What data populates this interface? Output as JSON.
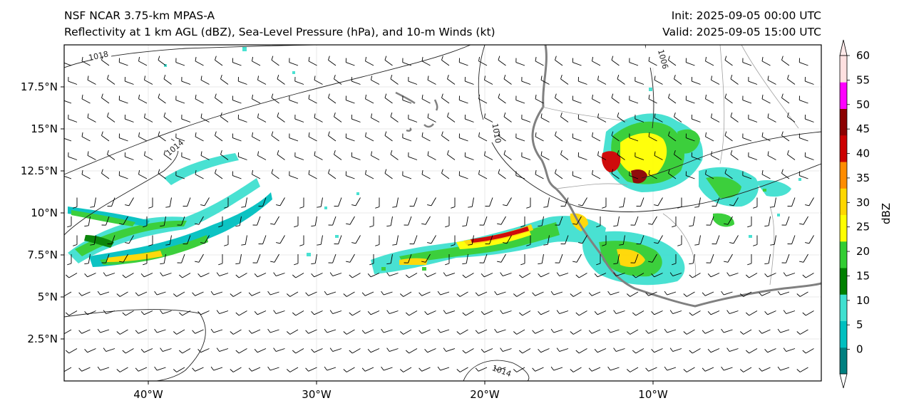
{
  "titles": {
    "left_line1": "NSF NCAR 3.75-km MPAS-A",
    "left_line2": "Reflectivity at 1 km AGL (dBZ), Sea-Level Pressure (hPa), and 10-m Winds (kt)",
    "right_line1": "Init: 2025-09-05 00:00 UTC",
    "right_line2": "Valid: 2025-09-05 15:00 UTC"
  },
  "map": {
    "extent": {
      "lon_min": -45,
      "lon_max": 0,
      "lat_min": 0,
      "lat_max": 20
    },
    "x_ticks": [
      {
        "lon": -40,
        "label": "40°W"
      },
      {
        "lon": -30,
        "label": "30°W"
      },
      {
        "lon": -20,
        "label": "20°W"
      },
      {
        "lon": -10,
        "label": "10°W"
      }
    ],
    "y_ticks": [
      {
        "lat": 2.5,
        "label": "2.5°N"
      },
      {
        "lat": 5,
        "label": "5°N"
      },
      {
        "lat": 7.5,
        "label": "7.5°N"
      },
      {
        "lat": 10,
        "label": "10°N"
      },
      {
        "lat": 12.5,
        "label": "12.5°N"
      },
      {
        "lat": 15,
        "label": "15°N"
      },
      {
        "lat": 17.5,
        "label": "17.5°N"
      }
    ],
    "isobar_labels": [
      "1018",
      "1014",
      "1010",
      "1006",
      "1014"
    ]
  },
  "colorbar": {
    "label": "dBZ",
    "levels": [
      {
        "value": 0,
        "label": "0",
        "color": "#008080"
      },
      {
        "value": 5,
        "label": "5",
        "color": "#00c0c0"
      },
      {
        "value": 10,
        "label": "10",
        "color": "#40e0d0"
      },
      {
        "value": 15,
        "label": "15",
        "color": "#008000"
      },
      {
        "value": 20,
        "label": "20",
        "color": "#32cd32"
      },
      {
        "value": 25,
        "label": "25",
        "color": "#ffff00"
      },
      {
        "value": 30,
        "label": "30",
        "color": "#ffd700"
      },
      {
        "value": 35,
        "label": "35",
        "color": "#ff8c00"
      },
      {
        "value": 40,
        "label": "40",
        "color": "#cc0000"
      },
      {
        "value": 45,
        "label": "45",
        "color": "#8b0000"
      },
      {
        "value": 50,
        "label": "50",
        "color": "#ff00ff"
      },
      {
        "value": 55,
        "label": "55",
        "color": "#ffe0e0"
      },
      {
        "value": 60,
        "label": "60",
        "color": "#ffe8e8"
      }
    ],
    "under_color": "#ffffff",
    "over_color": "#ffe8e8"
  }
}
